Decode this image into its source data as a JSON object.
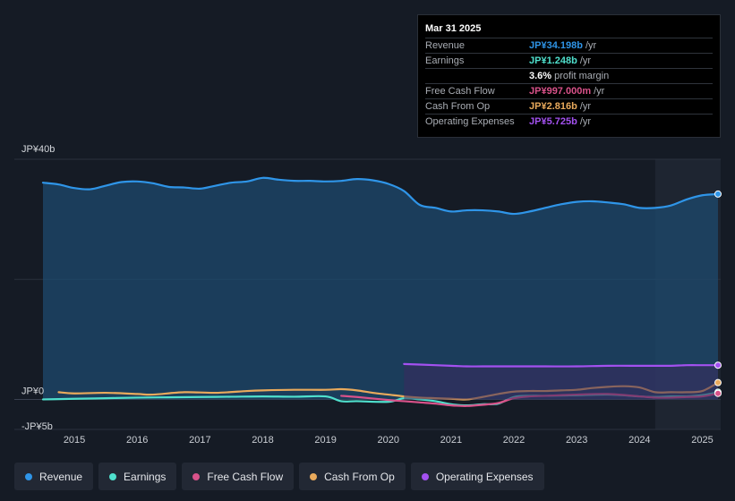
{
  "tooltip": {
    "date": "Mar 31 2025",
    "rows": [
      {
        "label": "Revenue",
        "value": "JP¥34.198b",
        "unit": "/yr",
        "color": "#2f95e8"
      },
      {
        "label": "Earnings",
        "value": "JP¥1.248b",
        "unit": "/yr",
        "color": "#4fe0cd"
      },
      {
        "label": "",
        "value": "3.6%",
        "unit": "profit margin",
        "color": "#ffffff"
      },
      {
        "label": "Free Cash Flow",
        "value": "JP¥997.000m",
        "unit": "/yr",
        "color": "#d9528a"
      },
      {
        "label": "Cash From Op",
        "value": "JP¥2.816b",
        "unit": "/yr",
        "color": "#e9aa5c"
      },
      {
        "label": "Operating Expenses",
        "value": "JP¥5.725b",
        "unit": "/yr",
        "color": "#a351f0"
      }
    ]
  },
  "legend": [
    {
      "label": "Revenue",
      "color": "#2f95e8"
    },
    {
      "label": "Earnings",
      "color": "#4fe0cd"
    },
    {
      "label": "Free Cash Flow",
      "color": "#d9528a"
    },
    {
      "label": "Cash From Op",
      "color": "#e9aa5c"
    },
    {
      "label": "Operating Expenses",
      "color": "#a351f0"
    }
  ],
  "chart_data": {
    "type": "area",
    "title": "",
    "xlabel": "",
    "ylabel": "",
    "y_axis_labels": [
      {
        "text": "JP¥40b",
        "value": 40
      },
      {
        "text": "JP¥0",
        "value": 0
      },
      {
        "text": "-JP¥5b",
        "value": -5
      }
    ],
    "ylim": [
      -5,
      40
    ],
    "xlim": [
      2014.5,
      2025.25
    ],
    "x_ticks": [
      2015,
      2016,
      2017,
      2018,
      2019,
      2020,
      2021,
      2022,
      2023,
      2024,
      2025
    ],
    "highlight_start": 2024.25,
    "units": "JP¥ billions",
    "series": [
      {
        "name": "Revenue",
        "color": "#2f95e8",
        "fill": true,
        "x": [
          2014.5,
          2014.75,
          2015.0,
          2015.25,
          2015.5,
          2015.75,
          2016.0,
          2016.25,
          2016.5,
          2016.75,
          2017.0,
          2017.25,
          2017.5,
          2017.75,
          2018.0,
          2018.25,
          2018.5,
          2018.75,
          2019.0,
          2019.25,
          2019.5,
          2019.75,
          2020.0,
          2020.25,
          2020.5,
          2020.75,
          2021.0,
          2021.25,
          2021.5,
          2021.75,
          2022.0,
          2022.25,
          2022.5,
          2022.75,
          2023.0,
          2023.25,
          2023.5,
          2023.75,
          2024.0,
          2024.25,
          2024.5,
          2024.75,
          2025.0,
          2025.25
        ],
        "values": [
          36.1,
          35.8,
          35.2,
          35.0,
          35.6,
          36.2,
          36.3,
          36.0,
          35.4,
          35.3,
          35.1,
          35.6,
          36.1,
          36.3,
          36.9,
          36.6,
          36.4,
          36.4,
          36.3,
          36.4,
          36.7,
          36.5,
          35.9,
          34.7,
          32.4,
          31.9,
          31.3,
          31.5,
          31.5,
          31.3,
          30.9,
          31.3,
          31.9,
          32.5,
          32.9,
          33.0,
          32.8,
          32.5,
          31.9,
          31.9,
          32.3,
          33.3,
          34.0,
          34.2
        ]
      },
      {
        "name": "Earnings",
        "color": "#4fe0cd",
        "fill": false,
        "x": [
          2014.5,
          2014.75,
          2015.0,
          2015.5,
          2016.0,
          2016.5,
          2017.0,
          2017.5,
          2018.0,
          2018.5,
          2019.0,
          2019.25,
          2019.5,
          2020.0,
          2020.25,
          2020.5,
          2020.75,
          2021.0,
          2021.25,
          2021.5,
          2021.75,
          2022.0,
          2022.25,
          2022.5,
          2023.0,
          2023.5,
          2024.0,
          2024.25,
          2024.5,
          2024.75,
          2025.0,
          2025.25
        ],
        "values": [
          0.0,
          0.05,
          0.1,
          0.2,
          0.3,
          0.35,
          0.4,
          0.45,
          0.5,
          0.45,
          0.5,
          -0.3,
          -0.3,
          -0.4,
          0.2,
          0.0,
          -0.3,
          -0.8,
          -1.0,
          -0.8,
          -0.7,
          0.4,
          0.6,
          0.6,
          0.7,
          0.8,
          0.5,
          0.4,
          0.5,
          0.5,
          0.7,
          1.2
        ]
      },
      {
        "name": "Free Cash Flow",
        "color": "#d9528a",
        "fill": false,
        "x": [
          2019.25,
          2019.5,
          2020.0,
          2020.25,
          2020.5,
          2020.75,
          2021.0,
          2021.25,
          2021.5,
          2021.75,
          2022.0,
          2022.25,
          2022.5,
          2023.0,
          2023.5,
          2024.0,
          2024.25,
          2024.5,
          2024.75,
          2025.0,
          2025.25
        ],
        "values": [
          0.6,
          0.4,
          -0.1,
          -0.3,
          -0.5,
          -0.7,
          -1.0,
          -1.1,
          -0.9,
          -0.6,
          0.2,
          0.5,
          0.6,
          0.8,
          0.9,
          0.5,
          0.3,
          0.3,
          0.4,
          0.5,
          1.0
        ]
      },
      {
        "name": "Cash From Op",
        "color": "#e9aa5c",
        "fill": false,
        "x": [
          2014.75,
          2015.0,
          2015.5,
          2016.0,
          2016.25,
          2016.75,
          2017.25,
          2017.75,
          2018.0,
          2018.5,
          2019.0,
          2019.25,
          2019.5,
          2019.75,
          2020.0,
          2020.25,
          2020.5,
          2020.75,
          2021.0,
          2021.25,
          2021.5,
          2021.75,
          2022.0,
          2022.25,
          2022.5,
          2022.75,
          2023.0,
          2023.25,
          2023.5,
          2023.75,
          2024.0,
          2024.25,
          2024.5,
          2024.75,
          2025.0,
          2025.25
        ],
        "values": [
          1.2,
          1.0,
          1.1,
          0.9,
          0.8,
          1.2,
          1.1,
          1.4,
          1.5,
          1.6,
          1.6,
          1.7,
          1.5,
          1.1,
          0.8,
          0.5,
          0.3,
          0.2,
          0.1,
          0.0,
          0.4,
          0.9,
          1.3,
          1.4,
          1.4,
          1.5,
          1.6,
          1.9,
          2.1,
          2.2,
          2.0,
          1.2,
          1.2,
          1.2,
          1.4,
          2.8
        ]
      },
      {
        "name": "Operating Expenses",
        "color": "#a351f0",
        "fill": true,
        "x": [
          2020.25,
          2020.5,
          2021.0,
          2021.25,
          2021.5,
          2022.0,
          2022.5,
          2023.0,
          2023.5,
          2024.0,
          2024.25,
          2024.5,
          2024.75,
          2025.0,
          2025.25
        ],
        "values": [
          5.9,
          5.8,
          5.6,
          5.5,
          5.5,
          5.5,
          5.5,
          5.5,
          5.6,
          5.6,
          5.6,
          5.6,
          5.7,
          5.7,
          5.7
        ]
      }
    ]
  }
}
